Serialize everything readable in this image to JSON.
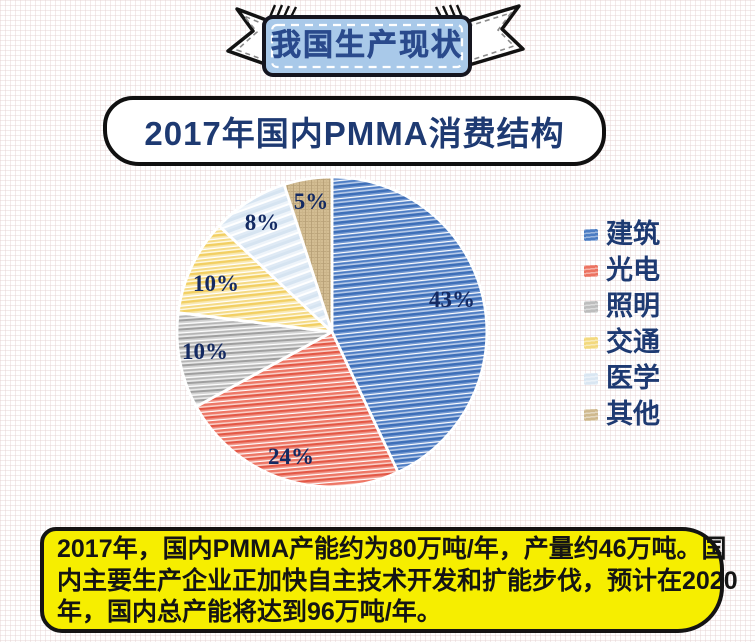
{
  "banner": {
    "label": "我国生产现状"
  },
  "title": {
    "text": "2017年国内PMMA消费结构"
  },
  "chart_data": {
    "type": "pie",
    "title": "2017年国内PMMA消费结构",
    "categories": [
      "建筑",
      "光电",
      "照明",
      "交通",
      "医学",
      "其他"
    ],
    "values": [
      43,
      24,
      10,
      10,
      8,
      5
    ],
    "labels": [
      "43%",
      "24%",
      "10%",
      "10%",
      "8%",
      "5%"
    ],
    "colors": [
      "#4c7cc2",
      "#ec7361",
      "#bdbdbd",
      "#f3d97e",
      "#d9e6f2",
      "#cfb98e"
    ],
    "label_color": "#142a62",
    "legend_position": "right",
    "start_angle_deg": 0,
    "direction": "clockwise",
    "texture": "crayon-stripes"
  },
  "note": {
    "background": "#f6ee00",
    "lines": [
      "2017年，国内PMMA产能约为80万吨/年，产量约46万吨。国",
      "内主要生产企业正加快自主技术开发和扩能步伐，预计在2020",
      "年，国内总产能将达到96万吨/年。"
    ]
  }
}
